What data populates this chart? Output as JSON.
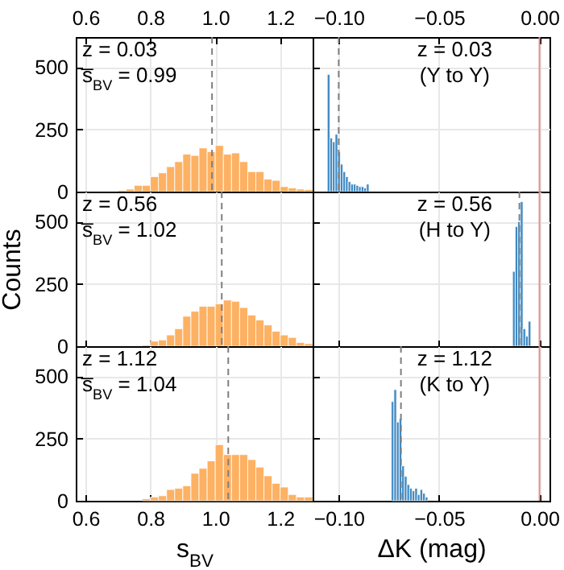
{
  "chart_data": [
    {
      "type": "histogram",
      "bins": [
        0.7,
        0.725,
        0.75,
        0.775,
        0.8,
        0.825,
        0.85,
        0.875,
        0.9,
        0.925,
        0.95,
        0.975,
        1.0,
        1.025,
        1.05,
        1.075,
        1.1,
        1.125,
        1.15,
        1.175,
        1.2,
        1.225,
        1.25,
        1.275,
        1.3
      ],
      "values": [
        5,
        10,
        25,
        25,
        60,
        75,
        100,
        120,
        150,
        145,
        175,
        160,
        185,
        150,
        155,
        120,
        80,
        80,
        50,
        45,
        20,
        15,
        10,
        8
      ],
      "color": "#fdb163",
      "xlim": [
        0.57,
        1.3
      ],
      "xticks": [
        0.6,
        0.8,
        {
          "value": 1,
          "label": "1.0"
        },
        1.2
      ],
      "ylim": [
        0,
        620
      ],
      "yticks": [
        0,
        250,
        500
      ],
      "grid": true,
      "ref_lines": [
        {
          "axis": "x",
          "value": 0.99,
          "color": "#7f7f7f",
          "line_style": "dashed"
        }
      ],
      "annotations": [
        "z = 0.03",
        "s̅$_{BV}$ = 0.99"
      ]
    },
    {
      "type": "histogram",
      "bins": [
        -0.1057,
        -0.1044,
        -0.1031,
        -0.1018,
        -0.1005,
        -0.0992,
        -0.0979,
        -0.0966,
        -0.0953,
        -0.094,
        -0.0927,
        -0.0914,
        -0.0901,
        -0.0888,
        -0.0875,
        -0.0862,
        -0.0849
      ],
      "values": [
        470,
        215,
        200,
        230,
        160,
        110,
        80,
        60,
        40,
        30,
        30,
        25,
        20,
        20,
        15,
        30
      ],
      "color": "#3e8ac4",
      "xlim": [
        -0.113,
        0.005
      ],
      "xticks": [
        {
          "value": -0.1,
          "label": "−0.10"
        },
        {
          "value": -0.05,
          "label": "−0.05"
        },
        {
          "value": 0,
          "label": "0.00"
        }
      ],
      "ylim": [
        0,
        620
      ],
      "yticks": [
        0,
        250,
        500
      ],
      "grid": true,
      "tick_labels": "x",
      "ref_lines": [
        {
          "axis": "x",
          "value": -0.1,
          "color": "#7f7f7f",
          "line_style": "dashed"
        },
        {
          "axis": "x",
          "value": 0,
          "color": "#e09090",
          "line_style": "solid"
        }
      ],
      "annotations": [
        "z = 0.03",
        "(Y to Y)"
      ]
    },
    {
      "type": "histogram",
      "bins": [
        0.775,
        0.8,
        0.825,
        0.85,
        0.875,
        0.9,
        0.925,
        0.95,
        0.975,
        1.0,
        1.025,
        1.05,
        1.075,
        1.1,
        1.125,
        1.15,
        1.175,
        1.2,
        1.225,
        1.25,
        1.275,
        1.3
      ],
      "values": [
        5,
        20,
        25,
        45,
        70,
        120,
        140,
        160,
        160,
        170,
        185,
        180,
        155,
        125,
        105,
        85,
        60,
        45,
        35,
        15,
        10
      ],
      "color": "#fdb163",
      "xlim": [
        0.57,
        1.3
      ],
      "xticks": [
        0.6,
        0.8,
        1,
        1.2
      ],
      "ylim": [
        0,
        620
      ],
      "yticks": [
        0,
        250,
        500
      ],
      "grid": true,
      "tick_labels": "y",
      "ylabel": "Counts",
      "ref_lines": [
        {
          "axis": "x",
          "value": 1.02,
          "color": "#7f7f7f",
          "line_style": "dashed"
        }
      ],
      "annotations": [
        "z = 0.56",
        "s̅$_{BV}$ = 1.02"
      ]
    },
    {
      "type": "histogram",
      "bins": [
        -0.0134,
        -0.0121,
        -0.0108,
        -0.0095,
        -0.0082,
        -0.0069,
        -0.0056,
        -0.0043
      ],
      "values": [
        300,
        480,
        500,
        580,
        70,
        40,
        100
      ],
      "color": "#3e8ac4",
      "xlim": [
        -0.113,
        0.005
      ],
      "xticks": [
        -0.1,
        -0.05,
        0
      ],
      "ylim": [
        0,
        620
      ],
      "yticks": [
        0,
        250,
        500
      ],
      "grid": true,
      "tick_labels": false,
      "ref_lines": [
        {
          "axis": "x",
          "value": -0.01,
          "color": "#7f7f7f",
          "line_style": "dashed"
        },
        {
          "axis": "x",
          "value": 0,
          "color": "#e09090",
          "line_style": "solid"
        }
      ],
      "annotations": [
        "z = 0.56",
        "(H to Y)"
      ]
    },
    {
      "type": "histogram",
      "bins": [
        0.775,
        0.8,
        0.825,
        0.85,
        0.875,
        0.9,
        0.925,
        0.95,
        0.975,
        1.0,
        1.025,
        1.05,
        1.075,
        1.1,
        1.125,
        1.15,
        1.175,
        1.2,
        1.225,
        1.25,
        1.275,
        1.3
      ],
      "values": [
        8,
        15,
        20,
        45,
        50,
        60,
        110,
        130,
        160,
        225,
        185,
        185,
        185,
        165,
        135,
        100,
        70,
        55,
        25,
        15,
        15
      ],
      "color": "#fdb163",
      "xlim": [
        0.57,
        1.3
      ],
      "xticks": [
        0.6,
        0.8,
        {
          "value": 1,
          "label": "1.0"
        },
        1.2
      ],
      "ylim": [
        0,
        620
      ],
      "yticks": [
        0,
        250,
        500
      ],
      "grid": true,
      "xlabel": "s$_{BV}$",
      "ref_lines": [
        {
          "axis": "x",
          "value": 1.04,
          "color": "#7f7f7f",
          "line_style": "dashed"
        }
      ],
      "annotations": [
        "z = 1.12",
        "s̅$_{BV}$ = 1.04"
      ]
    },
    {
      "type": "histogram",
      "bins": [
        -0.0738,
        -0.0725,
        -0.0712,
        -0.0699,
        -0.0686,
        -0.0673,
        -0.066,
        -0.0647,
        -0.0634,
        -0.0621,
        -0.0608,
        -0.0595,
        -0.0582,
        -0.0569,
        -0.0556
      ],
      "values": [
        398,
        446,
        316,
        330,
        140,
        98,
        65,
        50,
        40,
        50,
        25,
        45,
        30,
        15
      ],
      "color": "#3e8ac4",
      "xlim": [
        -0.113,
        0.005
      ],
      "xticks": [
        {
          "value": -0.1,
          "label": "−0.10"
        },
        {
          "value": -0.05,
          "label": "−0.05"
        },
        {
          "value": 0,
          "label": "0.00"
        }
      ],
      "ylim": [
        0,
        620
      ],
      "yticks": [
        0,
        250,
        500
      ],
      "grid": true,
      "tick_labels": "x",
      "xlabel": "ΔK (mag)",
      "ref_lines": [
        {
          "axis": "x",
          "value": -0.069,
          "color": "#7f7f7f",
          "line_style": "dashed"
        },
        {
          "axis": "x",
          "value": 0,
          "color": "#e09090",
          "line_style": "solid"
        }
      ],
      "annotations": [
        "z = 1.12",
        "(K to Y)"
      ]
    }
  ]
}
